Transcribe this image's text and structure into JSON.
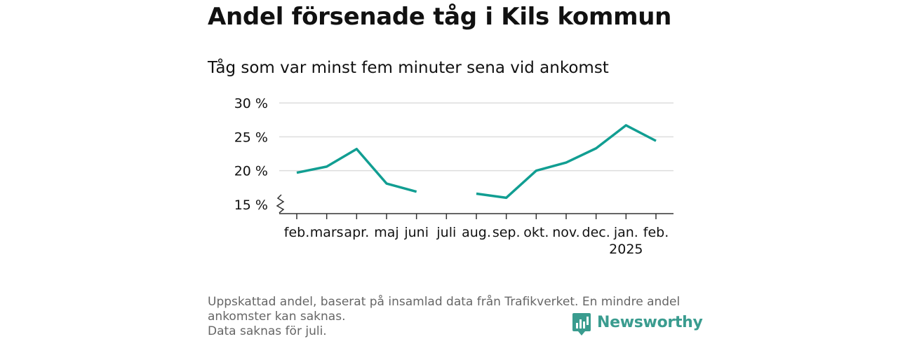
{
  "title": "Andel försenade tåg i Kils kommun",
  "subtitle": "Tåg som var minst fem minuter sena vid ankomst",
  "footnote": [
    "Uppskattad andel, baserat på insamlad data från Trafikverket. En mindre andel",
    "ankomster kan saknas.",
    "Data saknas för juli."
  ],
  "brand": {
    "name": "Newsworthy",
    "color": "#3a9c8f",
    "icon": "bar-chart-logo-icon"
  },
  "chart_data": {
    "type": "line",
    "title": "Andel försenade tåg i Kils kommun",
    "subtitle": "Tåg som var minst fem minuter sena vid ankomst",
    "categories": [
      "feb.",
      "mars",
      "apr.",
      "maj",
      "juni",
      "juli",
      "aug.",
      "sep.",
      "okt.",
      "nov.",
      "dec.",
      "jan.",
      "feb."
    ],
    "category_sublabels": [
      "",
      "",
      "",
      "",
      "",
      "",
      "",
      "",
      "",
      "",
      "",
      "2025",
      ""
    ],
    "series": [
      {
        "values": [
          19.7,
          20.6,
          23.2,
          18.1,
          16.9,
          null,
          16.6,
          16.0,
          20.0,
          21.2,
          23.3,
          26.7,
          24.4
        ]
      }
    ],
    "ylim": [
      15,
      30
    ],
    "yticks": [
      15,
      20,
      25,
      30
    ],
    "ytick_labels": [
      "15 %",
      "20 %",
      "25 %",
      "30 %"
    ],
    "y_axis_break": true,
    "grid": true,
    "legend": "none",
    "line_color": "#119e92",
    "grid_color": "#dddddd"
  }
}
